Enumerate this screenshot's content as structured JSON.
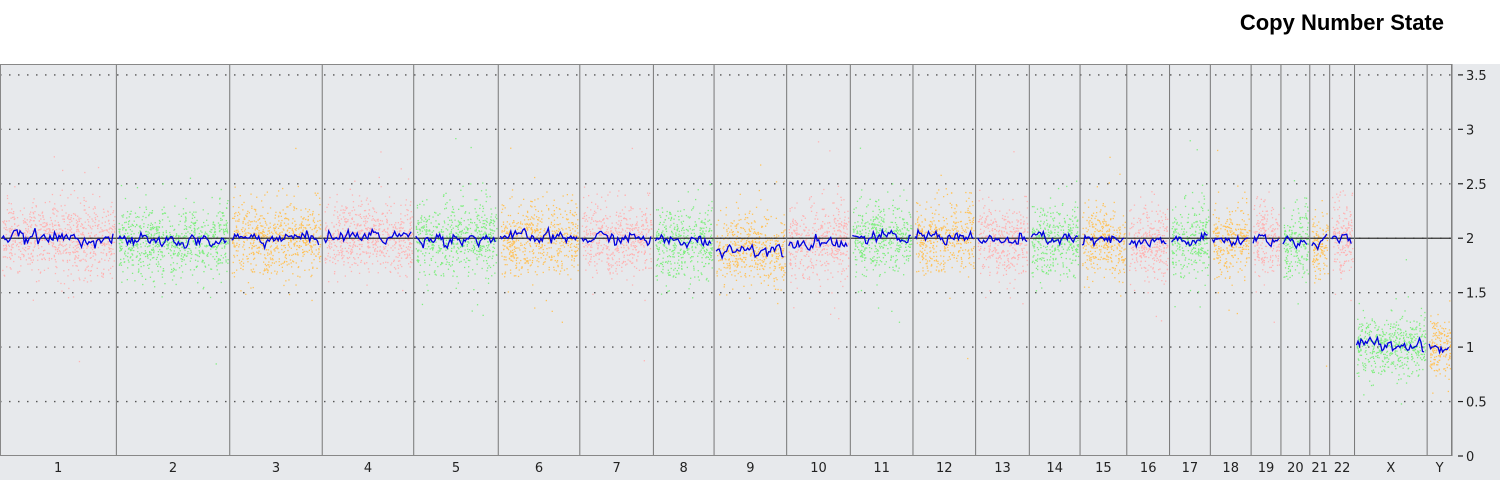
{
  "chart_data": {
    "type": "scatter",
    "title": "Copy Number State",
    "ylim": [
      0,
      3.6
    ],
    "yticks": [
      {
        "value": 3.5,
        "label": "3.5"
      },
      {
        "value": 3,
        "label": "3"
      },
      {
        "value": 2.5,
        "label": "2.5"
      },
      {
        "value": 2,
        "label": "2"
      },
      {
        "value": 1.5,
        "label": "1.5"
      },
      {
        "value": 1,
        "label": "1"
      },
      {
        "value": 0.5,
        "label": "0.5"
      },
      {
        "value": 0,
        "label": "0"
      }
    ],
    "grid": "dotted horizontal at 0.5 steps",
    "reference_line": 2,
    "colors": {
      "background": "#e7e9ec",
      "pink": "#ffb3b3",
      "green": "#80ee80",
      "orange": "#ffc25a",
      "segment": "#0000dd",
      "reference": "#333333"
    },
    "chromosomes": [
      {
        "label": "1",
        "size": 117,
        "color": "pink",
        "level": 2.0
      },
      {
        "label": "2",
        "size": 114,
        "color": "green",
        "level": 1.97
      },
      {
        "label": "3",
        "size": 93,
        "color": "orange",
        "level": 2.0
      },
      {
        "label": "4",
        "size": 92,
        "color": "pink",
        "level": 2.02
      },
      {
        "label": "5",
        "size": 85,
        "color": "green",
        "level": 2.0
      },
      {
        "label": "6",
        "size": 82,
        "color": "orange",
        "level": 2.0
      },
      {
        "label": "7",
        "size": 74,
        "color": "pink",
        "level": 2.0
      },
      {
        "label": "8",
        "size": 61,
        "color": "green",
        "level": 1.97
      },
      {
        "label": "9",
        "size": 73,
        "color": "orange",
        "level": 1.9
      },
      {
        "label": "10",
        "size": 64,
        "color": "pink",
        "level": 1.97
      },
      {
        "label": "11",
        "size": 63,
        "color": "green",
        "level": 2.0
      },
      {
        "label": "12",
        "size": 63,
        "color": "orange",
        "level": 2.02
      },
      {
        "label": "13",
        "size": 54,
        "color": "pink",
        "level": 1.97
      },
      {
        "label": "14",
        "size": 51,
        "color": "green",
        "level": 2.0
      },
      {
        "label": "15",
        "size": 47,
        "color": "orange",
        "level": 1.97
      },
      {
        "label": "16",
        "size": 43,
        "color": "pink",
        "level": 1.95
      },
      {
        "label": "17",
        "size": 41,
        "color": "green",
        "level": 1.98
      },
      {
        "label": "18",
        "size": 41,
        "color": "orange",
        "level": 1.98
      },
      {
        "label": "19",
        "size": 30,
        "color": "pink",
        "level": 2.0
      },
      {
        "label": "20",
        "size": 29,
        "color": "green",
        "level": 1.97
      },
      {
        "label": "21",
        "size": 20,
        "color": "orange",
        "level": 1.95
      },
      {
        "label": "22",
        "size": 25,
        "color": "pink",
        "level": 2.0
      },
      {
        "label": "X",
        "size": 73,
        "color": "green",
        "level": 1.02
      },
      {
        "label": "Y",
        "size": 25,
        "color": "orange",
        "level": 1.0
      }
    ]
  }
}
